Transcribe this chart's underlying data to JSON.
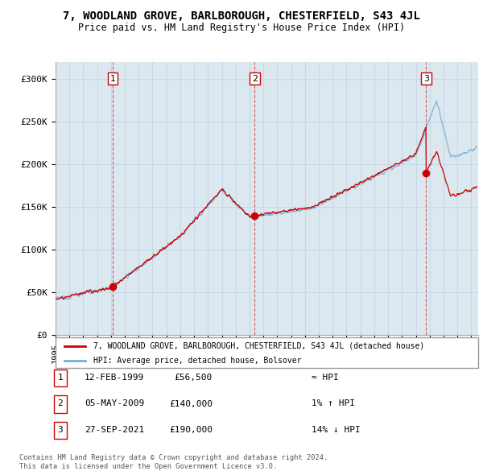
{
  "title": "7, WOODLAND GROVE, BARLBOROUGH, CHESTERFIELD, S43 4JL",
  "subtitle": "Price paid vs. HM Land Registry's House Price Index (HPI)",
  "ylim": [
    0,
    320000
  ],
  "yticks": [
    0,
    50000,
    100000,
    150000,
    200000,
    250000,
    300000
  ],
  "ytick_labels": [
    "£0",
    "£50K",
    "£100K",
    "£150K",
    "£200K",
    "£250K",
    "£300K"
  ],
  "xlim_start": 1995.0,
  "xlim_end": 2025.5,
  "sale_dates": [
    1999.12,
    2009.37,
    2021.74
  ],
  "sale_prices": [
    56500,
    140000,
    190000
  ],
  "sale_labels": [
    "1",
    "2",
    "3"
  ],
  "hpi_color": "#7aaed4",
  "sale_color": "#cc0000",
  "vline_color": "#cc0000",
  "grid_color": "#c8d8e8",
  "bg_color": "#dce8f0",
  "background_color": "#ffffff",
  "legend_sale_label": "7, WOODLAND GROVE, BARLBOROUGH, CHESTERFIELD, S43 4JL (detached house)",
  "legend_hpi_label": "HPI: Average price, detached house, Bolsover",
  "table_rows": [
    [
      "1",
      "12-FEB-1999",
      "£56,500",
      "≈ HPI"
    ],
    [
      "2",
      "05-MAY-2009",
      "£140,000",
      "1% ↑ HPI"
    ],
    [
      "3",
      "27-SEP-2021",
      "£190,000",
      "14% ↓ HPI"
    ]
  ],
  "footer_line1": "Contains HM Land Registry data © Crown copyright and database right 2024.",
  "footer_line2": "This data is licensed under the Open Government Licence v3.0."
}
